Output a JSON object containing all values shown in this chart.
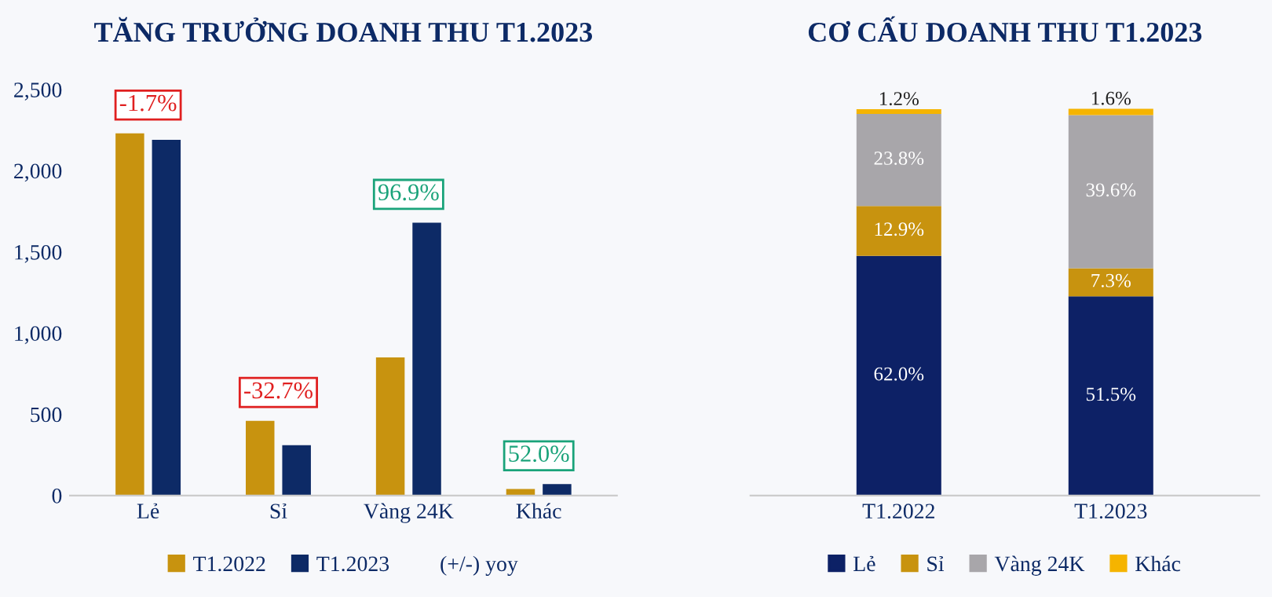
{
  "chart_data": [
    {
      "type": "bar",
      "title": "TĂNG TRƯỞNG DOANH THU T1.2023",
      "categories": [
        "Lẻ",
        "Sỉ",
        "Vàng 24K",
        "Khác"
      ],
      "series": [
        {
          "name": "T1.2022",
          "color": "#c8930f",
          "values": [
            2230,
            460,
            850,
            40
          ]
        },
        {
          "name": "T1.2023",
          "color": "#0d2a66",
          "values": [
            2190,
            310,
            1680,
            70
          ]
        }
      ],
      "ylim": [
        0,
        2500
      ],
      "yticks": [
        {
          "value": 0,
          "label": "0"
        },
        {
          "value": 500,
          "label": "500"
        },
        {
          "value": 1000,
          "label": "1,000"
        },
        {
          "value": 1500,
          "label": "1,500"
        },
        {
          "value": 2000,
          "label": "2,000"
        },
        {
          "value": 2500,
          "label": "2,500"
        }
      ],
      "annotations": [
        {
          "text": "-1.7%",
          "x": "Lẻ",
          "y": 2230
        },
        {
          "text": "-32.7%",
          "x": "Sỉ",
          "y": 460
        },
        {
          "text": "96.9%",
          "x": "Vàng 24K",
          "y": 1680
        },
        {
          "text": "52.0%",
          "x": "Khác",
          "y": 70
        },
        "(+/-) yoy"
      ],
      "legend": "bottom",
      "grid": false
    },
    {
      "type": "bar",
      "title": "CƠ CẤU DOANH THU T1.2023",
      "categories": [
        "T1.2022",
        "T1.2023"
      ],
      "stacked": true,
      "series": [
        {
          "name": "Lẻ",
          "color": "#0d2166",
          "values": [
            62.0,
            51.5
          ],
          "value_labels": [
            "62.0%",
            "51.5%"
          ]
        },
        {
          "name": "Sỉ",
          "color": "#c8930f",
          "values": [
            12.9,
            7.3
          ],
          "value_labels": [
            "12.9%",
            "7.3%"
          ]
        },
        {
          "name": "Vàng 24K",
          "color": "#a8a6aa",
          "values": [
            23.8,
            39.6
          ],
          "value_labels": [
            "23.8%",
            "39.6%"
          ]
        },
        {
          "name": "Khác",
          "color": "#f5b400",
          "values": [
            1.2,
            1.6
          ],
          "value_labels": [
            "1.2%",
            "1.6%"
          ]
        }
      ],
      "tick_labels": "x",
      "legend": "bottom",
      "grid": false
    }
  ]
}
